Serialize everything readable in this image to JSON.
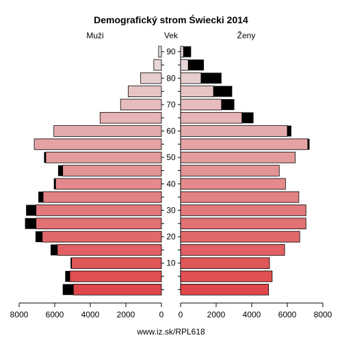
{
  "chart_data": {
    "type": "bar",
    "title": "Demografický strom Świecki 2014",
    "left_label": "Muži",
    "center_label": "Vek",
    "right_label": "Ženy",
    "footer": "www.iz.sk/RPL618",
    "age_ticks": [
      "10",
      "20",
      "30",
      "40",
      "50",
      "60",
      "70",
      "80",
      "90"
    ],
    "value_ticks_left": [
      "8000",
      "6000",
      "4000",
      "2000",
      "0"
    ],
    "value_ticks_right": [
      "0",
      "2000",
      "4000",
      "6000",
      "8000"
    ],
    "xlim": [
      0,
      8000
    ],
    "categories": [
      "0-4",
      "5-9",
      "10-14",
      "15-19",
      "20-24",
      "25-29",
      "30-34",
      "35-39",
      "40-44",
      "45-49",
      "50-54",
      "55-59",
      "60-64",
      "65-69",
      "70-74",
      "75-79",
      "80-84",
      "85-89",
      "90+"
    ],
    "series": [
      {
        "name": "Muži",
        "values": [
          4950,
          5150,
          5050,
          5850,
          6700,
          7050,
          7050,
          6650,
          5950,
          5550,
          6500,
          7150,
          6050,
          3450,
          2300,
          1870,
          1170,
          430,
          160
        ],
        "excess": [
          600,
          260,
          60,
          380,
          380,
          620,
          560,
          270,
          100,
          260,
          100,
          0,
          0,
          0,
          0,
          0,
          0,
          0,
          0
        ]
      },
      {
        "name": "Ženy",
        "values": [
          4950,
          5150,
          5000,
          5850,
          6700,
          7050,
          7050,
          6650,
          5900,
          5550,
          6450,
          7150,
          6000,
          3450,
          2300,
          1850,
          1150,
          430,
          160
        ],
        "excess": [
          0,
          0,
          0,
          0,
          0,
          0,
          0,
          0,
          0,
          0,
          0,
          100,
          230,
          650,
          720,
          1050,
          1150,
          880,
          430
        ]
      }
    ],
    "colors": {
      "young": "#e0474a",
      "old": "#e8dede",
      "excess": "#000000",
      "stroke": "#000000"
    }
  }
}
